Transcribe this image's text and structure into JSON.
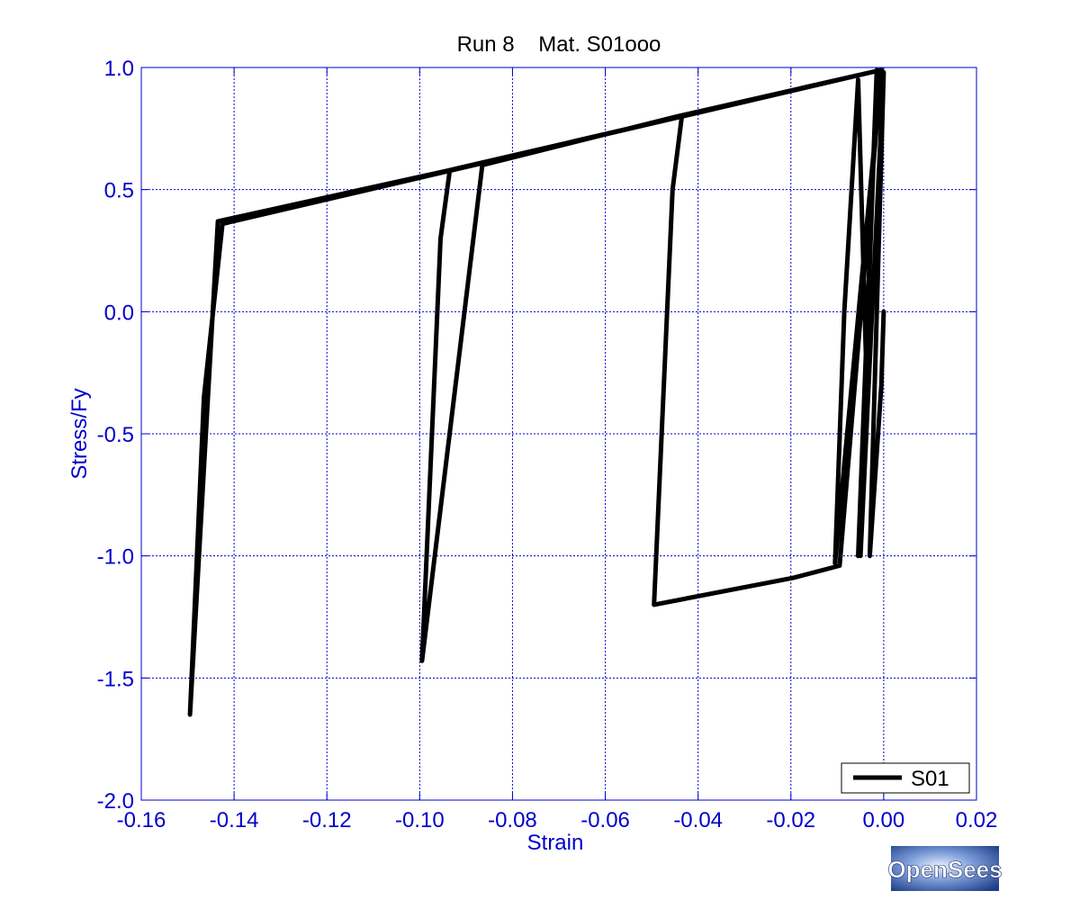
{
  "chart_data": {
    "type": "line",
    "title": "Run 8    Mat. S01ooo",
    "xlabel": "Strain",
    "ylabel": "Stress/Fy",
    "xlim": [
      -0.16,
      0.02
    ],
    "ylim": [
      -2.0,
      1.0
    ],
    "xticks": [
      -0.16,
      -0.14,
      -0.12,
      -0.1,
      -0.08,
      -0.06,
      -0.04,
      -0.02,
      0.0,
      0.02
    ],
    "xtick_labels": [
      "-0.16",
      "-0.14",
      "-0.12",
      "-0.10",
      "-0.08",
      "-0.06",
      "-0.04",
      "-0.02",
      "0.00",
      "0.02"
    ],
    "yticks": [
      1.0,
      0.5,
      0.0,
      -0.5,
      -1.0,
      -1.5,
      -2.0
    ],
    "ytick_labels": [
      "1.0",
      "0.5",
      "0.0",
      "-0.5",
      "-1.0",
      "-1.5",
      "-2.0"
    ],
    "grid": true,
    "legend": "bottom-right",
    "colors": {
      "line": "#000000",
      "axis_text": "#0000cc",
      "grid": "#0000cc"
    },
    "series": [
      {
        "name": "S01",
        "x": [
          0.0,
          -0.0005,
          -0.003,
          0.0,
          -0.0025,
          -0.005,
          -0.0045,
          -0.0015,
          -0.0055,
          -0.0035,
          -0.0055,
          -0.0085,
          -0.0105,
          -0.0005,
          -0.0095,
          -0.0195,
          -0.0495,
          -0.0455,
          -0.0435,
          -0.0005,
          -0.0445,
          -0.0865,
          -0.0995,
          -0.0955,
          -0.0935,
          -0.0005,
          -0.0935,
          -0.1435,
          -0.1495,
          -0.1465,
          -0.1425,
          -0.0005
        ],
        "y": [
          0.0,
          -0.3,
          -1.0,
          0.98,
          0.0,
          -1.0,
          -0.6,
          0.99,
          -1.0,
          -0.4,
          0.95,
          0.0,
          -1.03,
          0.99,
          -1.04,
          -1.09,
          -1.2,
          0.5,
          0.8,
          0.99,
          0.8,
          0.6,
          -1.43,
          0.3,
          0.58,
          0.99,
          0.58,
          0.37,
          -1.65,
          -0.35,
          0.36,
          0.99
        ]
      }
    ]
  },
  "logo": {
    "text": "OpenSees"
  }
}
